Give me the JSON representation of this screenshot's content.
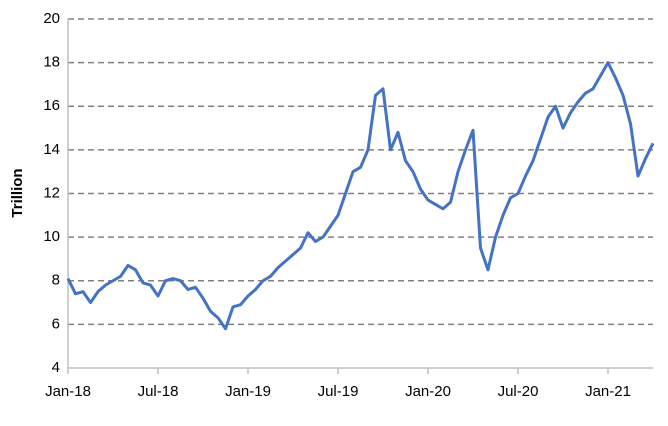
{
  "chart_data": {
    "type": "line",
    "y_label": "Trillion",
    "x": [
      0,
      0.5,
      1,
      1.5,
      2,
      2.5,
      3,
      3.5,
      4,
      4.5,
      5,
      5.5,
      6,
      6.5,
      7,
      7.5,
      8,
      8.5,
      9,
      9.5,
      10,
      10.5,
      11,
      11.5,
      12,
      12.5,
      13,
      13.5,
      14,
      14.5,
      15,
      15.5,
      16,
      16.5,
      17,
      17.5,
      18,
      18.5,
      19,
      19.5,
      20,
      20.5,
      21,
      21.5,
      22,
      22.5,
      23,
      23.5,
      24,
      24.5,
      25,
      25.5,
      26,
      26.5,
      27,
      27.5,
      28,
      28.5,
      29,
      29.5,
      30,
      30.5,
      31,
      31.5,
      32,
      32.5,
      33,
      33.5,
      34,
      34.5,
      35,
      35.5,
      36,
      36.5,
      37,
      37.5,
      38,
      38.5,
      39
    ],
    "series": [
      {
        "color": "#4472c4",
        "values": [
          8.1,
          7.4,
          7.5,
          7.0,
          7.5,
          7.8,
          8.0,
          8.2,
          8.7,
          8.5,
          7.9,
          7.8,
          7.3,
          8.0,
          8.1,
          8.0,
          7.6,
          7.7,
          7.2,
          6.6,
          6.3,
          5.8,
          6.8,
          6.9,
          7.3,
          7.6,
          8.0,
          8.2,
          8.6,
          8.9,
          9.2,
          9.5,
          10.2,
          9.8,
          10.0,
          10.5,
          11.0,
          12.0,
          13.0,
          13.2,
          14.0,
          16.5,
          16.8,
          14.0,
          14.8,
          13.5,
          13.0,
          12.2,
          11.7,
          11.5,
          11.3,
          11.6,
          13.0,
          14.0,
          14.9,
          9.5,
          8.5,
          10.0,
          11.0,
          11.8,
          12.0,
          12.8,
          13.5,
          14.5,
          15.5,
          16.0,
          15.0,
          15.7,
          16.2,
          16.6,
          16.8,
          17.4,
          18.0,
          17.3,
          16.5,
          15.2,
          12.8,
          13.6,
          14.3
        ]
      }
    ],
    "xlim": [
      0,
      39
    ],
    "xticks": [
      {
        "value": 0,
        "label": "Jan-18"
      },
      {
        "value": 6,
        "label": "Jul-18"
      },
      {
        "value": 12,
        "label": "Jan-19"
      },
      {
        "value": 18,
        "label": "Jul-19"
      },
      {
        "value": 24,
        "label": "Jan-20"
      },
      {
        "value": 30,
        "label": "Jul-20"
      },
      {
        "value": 36,
        "label": "Jan-21"
      }
    ],
    "ylim": [
      4,
      20
    ],
    "yticks": [
      4,
      6,
      8,
      10,
      12,
      14,
      16,
      18,
      20
    ],
    "grid": true
  }
}
